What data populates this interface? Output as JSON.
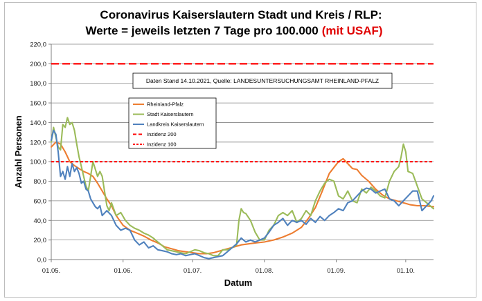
{
  "chart_data": {
    "type": "line",
    "title": {
      "line1": "Coronavirus Kaiserslautern Stadt und Kreis / RLP:",
      "line2_main": "Werte = jeweils letzten 7 Tage pro 100.000",
      "line2_highlight": "(mit USAF)"
    },
    "xlabel": "Datum",
    "ylabel": "Anzahl Personen",
    "annotation": "Daten Stand 14.10.2021, Quelle: LANDESUNTERSUCHUNGSAMT RHEINLAND-PFALZ",
    "ylim": [
      0,
      220
    ],
    "yticks": [
      "0,0",
      "20,0",
      "40,0",
      "60,0",
      "80,0",
      "100,0",
      "120,0",
      "140,0",
      "160,0",
      "180,0",
      "200,0",
      "220,0"
    ],
    "xlim_days": [
      0,
      165
    ],
    "xticks": [
      {
        "label": "01.05.",
        "day": 0
      },
      {
        "label": "01.06.",
        "day": 31
      },
      {
        "label": "01.07.",
        "day": 61
      },
      {
        "label": "01.08.",
        "day": 92
      },
      {
        "label": "01.09.",
        "day": 123
      },
      {
        "label": "01.10.",
        "day": 153
      }
    ],
    "grid": "horizontal",
    "legend_position": "upper-left",
    "series": [
      {
        "name": "Rheinland-Pfalz",
        "color": "#ED7D31",
        "style": "solid",
        "x": [
          0,
          2,
          4,
          6,
          8,
          10,
          12,
          14,
          16,
          18,
          20,
          22,
          24,
          26,
          28,
          31,
          34,
          37,
          40,
          43,
          46,
          49,
          52,
          55,
          58,
          61,
          64,
          67,
          70,
          73,
          76,
          79,
          82,
          85,
          88,
          92,
          96,
          100,
          104,
          108,
          111,
          114,
          117,
          120,
          122,
          124,
          126,
          128,
          130,
          132,
          134,
          137,
          140,
          143,
          146,
          149,
          152,
          155,
          158,
          161,
          165
        ],
        "y": [
          115,
          120,
          118,
          110,
          100,
          96,
          93,
          90,
          88,
          85,
          78,
          70,
          62,
          55,
          45,
          35,
          30,
          27,
          24,
          20,
          17,
          13,
          11,
          9,
          8,
          7,
          6,
          6,
          7,
          9,
          11,
          13,
          15,
          16,
          17,
          18,
          20,
          23,
          27,
          33,
          42,
          53,
          70,
          88,
          94,
          100,
          103,
          98,
          93,
          92,
          86,
          80,
          72,
          66,
          62,
          60,
          58,
          56,
          55,
          55,
          54
        ],
        "data_labels": []
      },
      {
        "name": "Stadt Kaiserslautern",
        "color": "#9BBB59",
        "style": "solid",
        "x": [
          0,
          1,
          2,
          3,
          4,
          5,
          6,
          7,
          8,
          9,
          10,
          11,
          12,
          13,
          14,
          15,
          16,
          18,
          20,
          21,
          22,
          23,
          24,
          25,
          26,
          28,
          30,
          32,
          34,
          36,
          38,
          40,
          42,
          44,
          46,
          48,
          50,
          52,
          54,
          56,
          58,
          60,
          62,
          64,
          66,
          68,
          70,
          72,
          74,
          76,
          78,
          80,
          81,
          82,
          83,
          84,
          86,
          88,
          90,
          92,
          94,
          96,
          98,
          100,
          102,
          104,
          106,
          108,
          110,
          112,
          114,
          116,
          118,
          120,
          122,
          124,
          126,
          128,
          130,
          132,
          134,
          136,
          138,
          140,
          142,
          144,
          146,
          148,
          150,
          151,
          152,
          153,
          154,
          156,
          158,
          160,
          162,
          165
        ],
        "y": [
          120,
          135,
          125,
          115,
          112,
          138,
          135,
          145,
          138,
          140,
          132,
          118,
          105,
          95,
          85,
          75,
          70,
          100,
          85,
          90,
          85,
          70,
          55,
          50,
          58,
          45,
          48,
          40,
          35,
          32,
          30,
          27,
          25,
          22,
          18,
          14,
          10,
          9,
          8,
          7,
          6,
          8,
          10,
          9,
          7,
          6,
          4,
          4,
          10,
          10,
          12,
          15,
          40,
          52,
          48,
          47,
          40,
          28,
          20,
          20,
          30,
          35,
          45,
          48,
          45,
          50,
          38,
          42,
          50,
          45,
          60,
          70,
          78,
          82,
          80,
          65,
          62,
          70,
          60,
          58,
          72,
          68,
          74,
          70,
          65,
          63,
          80,
          90,
          95,
          105,
          118,
          110,
          90,
          88,
          75,
          62,
          58,
          52
        ],
        "data_labels": []
      },
      {
        "name": "Landkreis Kaiserslautern",
        "color": "#4F81BD",
        "style": "solid",
        "x": [
          0,
          1,
          2,
          3,
          4,
          5,
          6,
          7,
          8,
          9,
          10,
          11,
          12,
          13,
          14,
          15,
          16,
          17,
          18,
          19,
          20,
          21,
          22,
          24,
          26,
          28,
          30,
          32,
          34,
          36,
          38,
          40,
          42,
          44,
          46,
          48,
          50,
          52,
          54,
          56,
          58,
          60,
          62,
          64,
          66,
          68,
          70,
          72,
          74,
          76,
          78,
          80,
          82,
          84,
          86,
          88,
          90,
          92,
          94,
          96,
          98,
          100,
          102,
          104,
          106,
          108,
          110,
          112,
          114,
          116,
          118,
          120,
          122,
          124,
          126,
          128,
          130,
          132,
          134,
          136,
          138,
          140,
          142,
          144,
          146,
          148,
          150,
          152,
          154,
          156,
          158,
          160,
          162,
          164,
          165
        ],
        "y": [
          122,
          132,
          128,
          110,
          85,
          90,
          82,
          95,
          85,
          98,
          90,
          94,
          88,
          78,
          80,
          72,
          70,
          62,
          58,
          54,
          52,
          55,
          45,
          50,
          45,
          35,
          30,
          32,
          30,
          20,
          15,
          18,
          12,
          14,
          10,
          9,
          8,
          6,
          5,
          6,
          4,
          5,
          6,
          4,
          2,
          1,
          2,
          3,
          4,
          8,
          12,
          16,
          22,
          18,
          20,
          18,
          20,
          22,
          28,
          35,
          38,
          42,
          35,
          40,
          38,
          40,
          36,
          42,
          38,
          44,
          40,
          45,
          48,
          52,
          50,
          58,
          60,
          65,
          70,
          73,
          72,
          68,
          70,
          72,
          62,
          60,
          55,
          60,
          65,
          70,
          70,
          50,
          55,
          60,
          65
        ],
        "data_labels": []
      },
      {
        "name": "Inzidenz 200",
        "color": "#FF0000",
        "style": "dashed-long",
        "x": [
          0,
          165
        ],
        "y": [
          200,
          200
        ]
      },
      {
        "name": "Inzidenz 100",
        "color": "#FF0000",
        "style": "dashed-short",
        "x": [
          0,
          165
        ],
        "y": [
          100,
          100
        ]
      }
    ]
  }
}
